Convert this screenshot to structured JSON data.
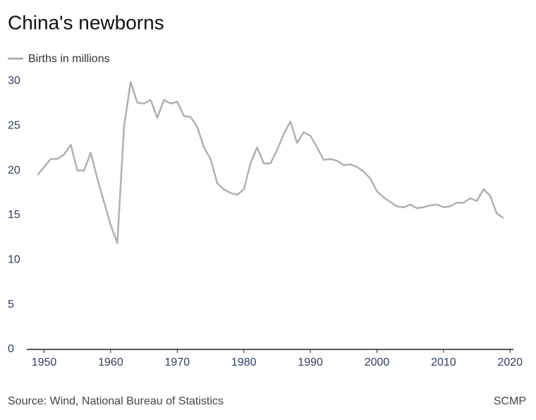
{
  "chart_data": {
    "type": "line",
    "title": "China's newborns",
    "source": "Source: Wind, National Bureau of Statistics",
    "credit": "SCMP",
    "x": [
      1949,
      1950,
      1951,
      1952,
      1953,
      1954,
      1955,
      1956,
      1957,
      1958,
      1959,
      1960,
      1961,
      1962,
      1963,
      1964,
      1965,
      1966,
      1967,
      1968,
      1969,
      1970,
      1971,
      1972,
      1973,
      1974,
      1975,
      1976,
      1977,
      1978,
      1979,
      1980,
      1981,
      1982,
      1983,
      1984,
      1985,
      1986,
      1987,
      1988,
      1989,
      1990,
      1991,
      1992,
      1993,
      1994,
      1995,
      1996,
      1997,
      1998,
      1999,
      2000,
      2001,
      2002,
      2003,
      2004,
      2005,
      2006,
      2007,
      2008,
      2009,
      2010,
      2011,
      2012,
      2013,
      2014,
      2015,
      2016,
      2017,
      2018,
      2019
    ],
    "series": [
      {
        "name": "Births in millions",
        "color": "#b0b0b0",
        "values": [
          19.5,
          20.4,
          21.3,
          21.3,
          21.8,
          22.9,
          20.0,
          20.0,
          22.0,
          19.1,
          16.5,
          13.9,
          11.9,
          24.9,
          29.9,
          27.6,
          27.5,
          27.9,
          25.9,
          27.9,
          27.5,
          27.7,
          26.1,
          26.0,
          24.9,
          22.6,
          21.3,
          18.6,
          17.9,
          17.5,
          17.3,
          17.9,
          20.8,
          22.6,
          20.8,
          20.8,
          22.3,
          24.1,
          25.5,
          23.1,
          24.3,
          23.9,
          22.6,
          21.2,
          21.3,
          21.1,
          20.6,
          20.7,
          20.4,
          19.9,
          19.1,
          17.7,
          17.0,
          16.5,
          16.0,
          15.9,
          16.2,
          15.8,
          15.9,
          16.1,
          16.2,
          15.9,
          16.0,
          16.4,
          16.4,
          16.9,
          16.6,
          17.9,
          17.2,
          15.2,
          14.7
        ]
      }
    ],
    "xlim": [
      1947.4,
      2020.5
    ],
    "xticks": [
      1950,
      1960,
      1970,
      1980,
      1990,
      2000,
      2010,
      2020
    ],
    "ylim": [
      0,
      30
    ],
    "yticks": [
      0,
      5,
      10,
      15,
      20,
      25,
      30
    ],
    "grid": false
  }
}
